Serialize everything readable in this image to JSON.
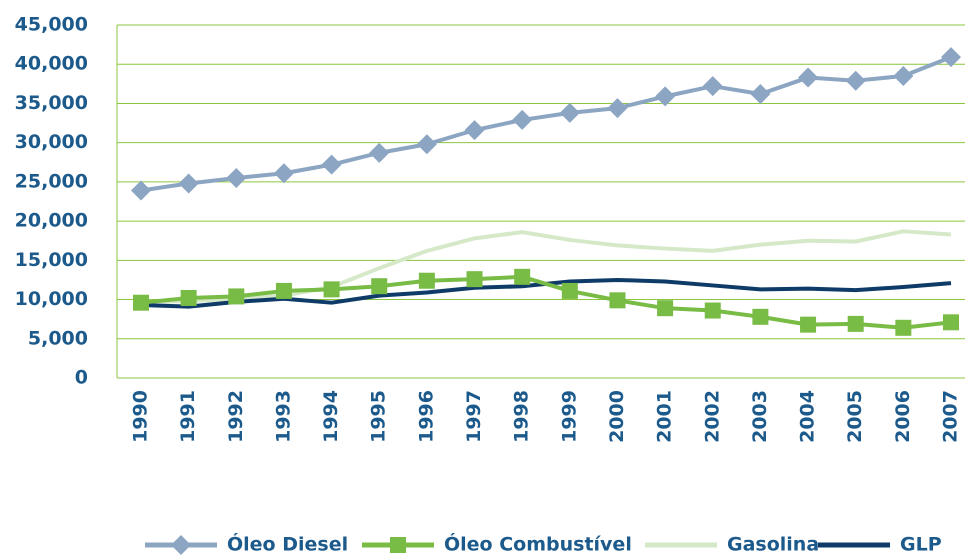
{
  "chart_data": {
    "type": "line",
    "categories": [
      "1990",
      "1991",
      "1992",
      "1993",
      "1994",
      "1995",
      "1996",
      "1997",
      "1998",
      "1999",
      "2000",
      "2001",
      "2002",
      "2003",
      "2004",
      "2005",
      "2006",
      "2007"
    ],
    "series": [
      {
        "name": "Óleo Diesel",
        "color": "#8ba5c2",
        "marker": "diamond",
        "values": [
          23900,
          24800,
          25500,
          26100,
          27200,
          28700,
          29800,
          31600,
          32900,
          33800,
          34400,
          35900,
          37200,
          36200,
          38300,
          37900,
          38500,
          40900
        ]
      },
      {
        "name": "Óleo Combustível",
        "color": "#78bb45",
        "marker": "square",
        "values": [
          9600,
          10200,
          10400,
          11100,
          11300,
          11700,
          12400,
          12600,
          12900,
          11100,
          9900,
          8900,
          8600,
          7800,
          6800,
          6900,
          6400,
          7100
        ]
      },
      {
        "name": "Gasolina",
        "color": "#d5e9c9",
        "values": [
          9700,
          9800,
          10100,
          10500,
          11600,
          14000,
          16200,
          17800,
          18600,
          17600,
          16900,
          16500,
          16200,
          17000,
          17500,
          17400,
          18700,
          18300
        ]
      },
      {
        "name": "GLP",
        "color": "#0e3b68",
        "values": [
          9300,
          9100,
          9700,
          10100,
          9600,
          10500,
          10900,
          11500,
          11700,
          12300,
          12500,
          12300,
          11800,
          11300,
          11400,
          11200,
          11600,
          12100
        ]
      }
    ],
    "ylim": [
      0,
      45000
    ],
    "yticks": [
      0,
      {
        "value": 5000,
        "label": "5,000"
      },
      {
        "value": 10000,
        "label": "10,000"
      },
      {
        "value": 15000,
        "label": "15,000"
      },
      {
        "value": 20000,
        "label": "20,000"
      },
      {
        "value": 25000,
        "label": "25,000"
      },
      {
        "value": 30000,
        "label": "30,000"
      },
      {
        "value": 35000,
        "label": "35,000"
      },
      {
        "value": 40000,
        "label": "40,000"
      },
      {
        "value": 45000,
        "label": "45,000"
      }
    ],
    "grid": true,
    "legend": "bottom"
  }
}
